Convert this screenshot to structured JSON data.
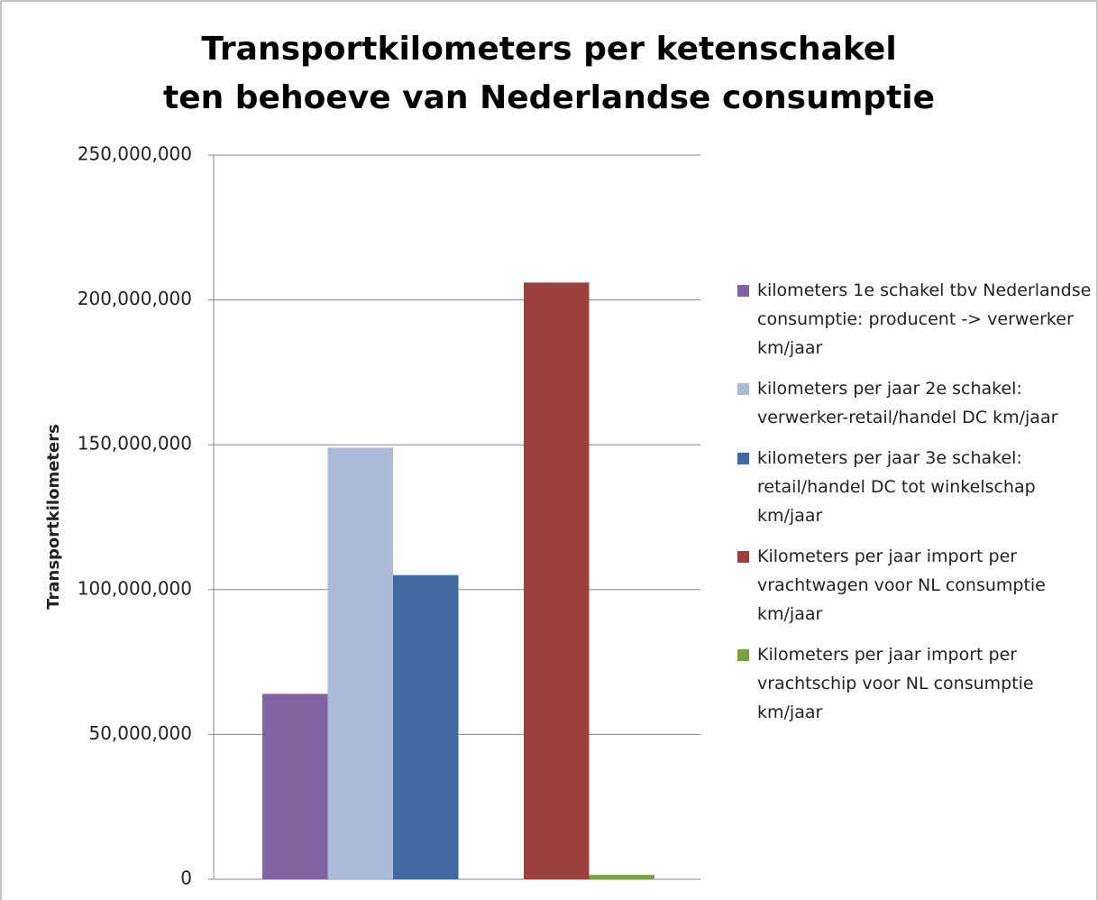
{
  "chart_data": {
    "type": "bar",
    "title": [
      "Transportkilometers per ketenschakel",
      "ten behoeve van Nederlandse consumptie"
    ],
    "y_label": "Transportkilometers",
    "categories": [
      null
    ],
    "series": [
      {
        "name": "kilometers 1e schakel tbv Nederlandse consumptie: producent -> verwerker km/jaar",
        "color": "#8064a2",
        "values": [
          64000000
        ]
      },
      {
        "name": "kilometers per jaar 2e schakel: verwerker-retail/handel DC km/jaar",
        "color": "#aabad7",
        "values": [
          149000000
        ]
      },
      {
        "name": "kilometers per jaar 3e schakel: retail/handel DC tot winkelschap km/jaar",
        "color": "#4069a0",
        "values": [
          105000000
        ]
      },
      {
        "name": "Kilometers per jaar import per vrachtwagen voor NL consumptie km/jaar",
        "color": "#9c403d",
        "values": [
          206000000
        ]
      },
      {
        "name": "Kilometers per jaar import per vrachtschip voor NL consumptie km/jaar",
        "color": "#78a041",
        "values": [
          1500000
        ]
      }
    ],
    "ylim": [
      0,
      250000000
    ],
    "yticks": [
      0,
      {
        "value": 50000000,
        "label": "50,000,000"
      },
      {
        "value": 100000000,
        "label": "100,000,000"
      },
      {
        "value": 150000000,
        "label": "150,000,000"
      },
      {
        "value": 200000000,
        "label": "200,000,000"
      },
      {
        "value": 250000000,
        "label": "250,000,000"
      }
    ],
    "grid": true,
    "legend": "right"
  }
}
